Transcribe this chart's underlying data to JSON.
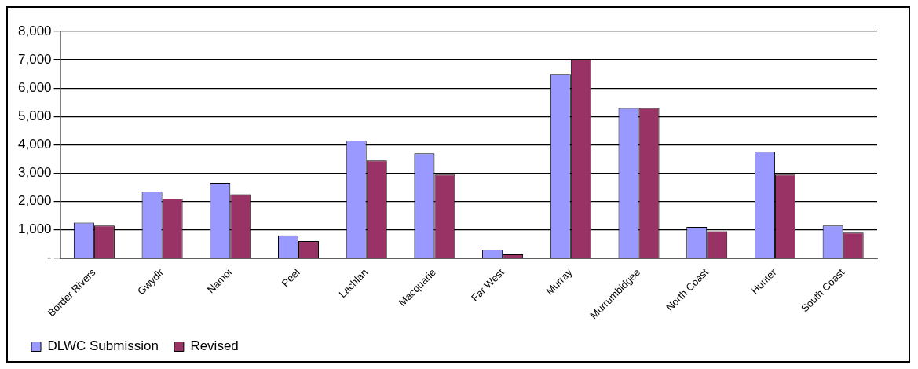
{
  "chart_data": {
    "type": "bar",
    "categories": [
      "Border Rivers",
      "Gwydir",
      "Namoi",
      "Peel",
      "Lachlan",
      "Macquarie",
      "Far West",
      "Murray",
      "Murrumbidgee",
      "North Coast",
      "Hunter",
      "South Coast"
    ],
    "series": [
      {
        "name": "DLWC Submission",
        "color": "#9999ff",
        "values": [
          1250,
          2350,
          2650,
          800,
          4150,
          3700,
          300,
          6500,
          5300,
          1100,
          3750,
          1150
        ]
      },
      {
        "name": "Revised",
        "color": "#993366",
        "values": [
          1150,
          2100,
          2250,
          600,
          3450,
          2950,
          130,
          7000,
          5300,
          950,
          2950,
          900
        ]
      }
    ],
    "ylim": [
      0,
      8000
    ],
    "yticks": [
      {
        "value": 0,
        "label": "-"
      },
      {
        "value": 1000,
        "label": "1,000"
      },
      {
        "value": 2000,
        "label": "2,000"
      },
      {
        "value": 3000,
        "label": "3,000"
      },
      {
        "value": 4000,
        "label": "4,000"
      },
      {
        "value": 5000,
        "label": "5,000"
      },
      {
        "value": 6000,
        "label": "6,000"
      },
      {
        "value": 7000,
        "label": "7,000"
      },
      {
        "value": 8000,
        "label": "8,000"
      }
    ],
    "grid": "y",
    "legend": "bottom"
  }
}
